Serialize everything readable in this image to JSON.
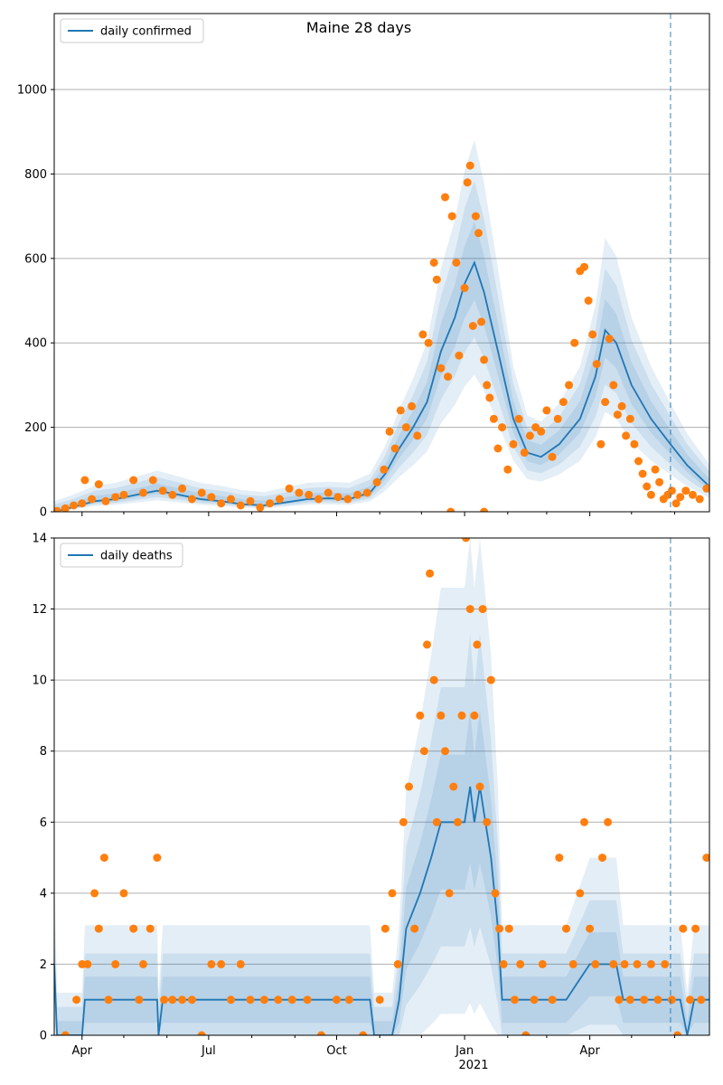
{
  "title": "Maine 28 days",
  "colors": {
    "line": "#1f77b4",
    "band": "#1f77b4",
    "points": "#ff7f0e",
    "grid": "#b0b0b0",
    "vline": "#1f77b4"
  },
  "x_ticks": [
    {
      "label": "Apr",
      "date": "2020-04-01"
    },
    {
      "label": "Jul",
      "date": "2020-07-01"
    },
    {
      "label": "Oct",
      "date": "2020-10-01"
    },
    {
      "label": "Jan",
      "date": "2021-01-01"
    },
    {
      "label": "Apr",
      "date": "2021-04-01"
    }
  ],
  "x_year_label": "2021",
  "x_range": [
    "2020-03-12",
    "2021-06-26"
  ],
  "forecast_date": "2021-05-29",
  "chart_data": [
    {
      "type": "line",
      "legend": "daily confirmed",
      "legend_position": "upper-left",
      "grid": "y",
      "ylim": [
        0,
        1180
      ],
      "yticks": [
        0,
        200,
        400,
        600,
        800,
        1000
      ],
      "median": [
        [
          "2020-03-12",
          0
        ],
        [
          "2020-03-25",
          10
        ],
        [
          "2020-04-10",
          25
        ],
        [
          "2020-04-25",
          30
        ],
        [
          "2020-05-10",
          40
        ],
        [
          "2020-05-25",
          50
        ],
        [
          "2020-06-10",
          40
        ],
        [
          "2020-06-25",
          30
        ],
        [
          "2020-07-10",
          25
        ],
        [
          "2020-07-25",
          18
        ],
        [
          "2020-08-10",
          15
        ],
        [
          "2020-08-25",
          22
        ],
        [
          "2020-09-10",
          30
        ],
        [
          "2020-09-25",
          32
        ],
        [
          "2020-10-10",
          30
        ],
        [
          "2020-10-25",
          45
        ],
        [
          "2020-11-05",
          90
        ],
        [
          "2020-11-15",
          150
        ],
        [
          "2020-11-25",
          200
        ],
        [
          "2020-12-05",
          260
        ],
        [
          "2020-12-15",
          380
        ],
        [
          "2020-12-25",
          460
        ],
        [
          "2021-01-01",
          540
        ],
        [
          "2021-01-08",
          590
        ],
        [
          "2021-01-15",
          520
        ],
        [
          "2021-01-25",
          380
        ],
        [
          "2021-02-05",
          220
        ],
        [
          "2021-02-15",
          140
        ],
        [
          "2021-02-25",
          130
        ],
        [
          "2021-03-10",
          160
        ],
        [
          "2021-03-25",
          220
        ],
        [
          "2021-04-05",
          320
        ],
        [
          "2021-04-12",
          430
        ],
        [
          "2021-04-20",
          400
        ],
        [
          "2021-05-01",
          300
        ],
        [
          "2021-05-15",
          220
        ],
        [
          "2021-05-29",
          160
        ],
        [
          "2021-06-10",
          110
        ],
        [
          "2021-06-26",
          60
        ]
      ],
      "bands": [
        {
          "lo": 0.55,
          "hi": 1.45
        },
        {
          "lo": 0.7,
          "hi": 1.3
        },
        {
          "lo": 0.85,
          "hi": 1.15
        }
      ],
      "points": [
        [
          "2020-03-14",
          2
        ],
        [
          "2020-03-20",
          8
        ],
        [
          "2020-03-26",
          15
        ],
        [
          "2020-04-01",
          20
        ],
        [
          "2020-04-03",
          75
        ],
        [
          "2020-04-08",
          30
        ],
        [
          "2020-04-13",
          65
        ],
        [
          "2020-04-18",
          25
        ],
        [
          "2020-04-25",
          35
        ],
        [
          "2020-05-01",
          40
        ],
        [
          "2020-05-08",
          75
        ],
        [
          "2020-05-15",
          45
        ],
        [
          "2020-05-22",
          75
        ],
        [
          "2020-05-29",
          50
        ],
        [
          "2020-06-05",
          40
        ],
        [
          "2020-06-12",
          55
        ],
        [
          "2020-06-19",
          30
        ],
        [
          "2020-06-26",
          45
        ],
        [
          "2020-07-03",
          35
        ],
        [
          "2020-07-10",
          20
        ],
        [
          "2020-07-17",
          30
        ],
        [
          "2020-07-24",
          15
        ],
        [
          "2020-07-31",
          25
        ],
        [
          "2020-08-07",
          10
        ],
        [
          "2020-08-14",
          20
        ],
        [
          "2020-08-21",
          30
        ],
        [
          "2020-08-28",
          55
        ],
        [
          "2020-09-04",
          45
        ],
        [
          "2020-09-11",
          40
        ],
        [
          "2020-09-18",
          30
        ],
        [
          "2020-09-25",
          45
        ],
        [
          "2020-10-02",
          35
        ],
        [
          "2020-10-09",
          30
        ],
        [
          "2020-10-16",
          40
        ],
        [
          "2020-10-23",
          45
        ],
        [
          "2020-10-30",
          70
        ],
        [
          "2020-11-04",
          100
        ],
        [
          "2020-11-08",
          190
        ],
        [
          "2020-11-12",
          150
        ],
        [
          "2020-11-16",
          240
        ],
        [
          "2020-11-20",
          200
        ],
        [
          "2020-11-24",
          250
        ],
        [
          "2020-11-28",
          180
        ],
        [
          "2020-12-02",
          420
        ],
        [
          "2020-12-06",
          400
        ],
        [
          "2020-12-10",
          590
        ],
        [
          "2020-12-12",
          550
        ],
        [
          "2020-12-15",
          340
        ],
        [
          "2020-12-18",
          745
        ],
        [
          "2020-12-20",
          320
        ],
        [
          "2020-12-23",
          700
        ],
        [
          "2020-12-26",
          590
        ],
        [
          "2020-12-28",
          370
        ],
        [
          "2021-01-01",
          530
        ],
        [
          "2021-01-03",
          780
        ],
        [
          "2021-01-05",
          820
        ],
        [
          "2021-01-07",
          440
        ],
        [
          "2021-01-09",
          700
        ],
        [
          "2021-01-11",
          660
        ],
        [
          "2021-01-13",
          450
        ],
        [
          "2021-01-15",
          360
        ],
        [
          "2021-01-17",
          300
        ],
        [
          "2021-01-19",
          270
        ],
        [
          "2021-01-22",
          220
        ],
        [
          "2021-01-25",
          150
        ],
        [
          "2021-01-28",
          200
        ],
        [
          "2021-02-01",
          100
        ],
        [
          "2021-02-05",
          160
        ],
        [
          "2021-02-09",
          220
        ],
        [
          "2021-02-13",
          140
        ],
        [
          "2021-02-17",
          180
        ],
        [
          "2021-02-21",
          200
        ],
        [
          "2021-02-25",
          190
        ],
        [
          "2021-03-01",
          240
        ],
        [
          "2021-03-05",
          130
        ],
        [
          "2021-03-09",
          220
        ],
        [
          "2021-03-13",
          260
        ],
        [
          "2021-03-17",
          300
        ],
        [
          "2021-03-21",
          400
        ],
        [
          "2021-03-25",
          570
        ],
        [
          "2021-03-28",
          580
        ],
        [
          "2021-03-31",
          500
        ],
        [
          "2021-04-03",
          420
        ],
        [
          "2021-04-06",
          350
        ],
        [
          "2021-04-09",
          160
        ],
        [
          "2021-04-12",
          260
        ],
        [
          "2021-04-15",
          410
        ],
        [
          "2021-04-18",
          300
        ],
        [
          "2021-04-21",
          230
        ],
        [
          "2021-04-24",
          250
        ],
        [
          "2021-04-27",
          180
        ],
        [
          "2021-04-30",
          220
        ],
        [
          "2021-05-03",
          160
        ],
        [
          "2021-05-06",
          120
        ],
        [
          "2021-05-09",
          90
        ],
        [
          "2021-05-12",
          60
        ],
        [
          "2021-05-15",
          40
        ],
        [
          "2021-05-18",
          100
        ],
        [
          "2021-05-21",
          70
        ],
        [
          "2021-05-24",
          30
        ],
        [
          "2021-05-27",
          40
        ],
        [
          "2021-05-30",
          50
        ],
        [
          "2021-06-02",
          20
        ],
        [
          "2021-06-05",
          35
        ],
        [
          "2021-06-09",
          50
        ],
        [
          "2021-06-14",
          40
        ],
        [
          "2021-06-19",
          30
        ],
        [
          "2021-06-24",
          55
        ],
        [
          "2020-12-22",
          0
        ],
        [
          "2021-01-15",
          0
        ]
      ]
    },
    {
      "type": "line",
      "legend": "daily deaths",
      "legend_position": "upper-left",
      "grid": "y",
      "ylim": [
        0,
        14
      ],
      "yticks": [
        0,
        2,
        4,
        6,
        8,
        10,
        12,
        14
      ],
      "median": [
        [
          "2020-03-12",
          2
        ],
        [
          "2020-03-14",
          0
        ],
        [
          "2020-04-01",
          0
        ],
        [
          "2020-04-03",
          1
        ],
        [
          "2020-05-20",
          1
        ],
        [
          "2020-05-25",
          1
        ],
        [
          "2020-05-26",
          0
        ],
        [
          "2020-05-29",
          1
        ],
        [
          "2020-10-25",
          1
        ],
        [
          "2020-10-28",
          0
        ],
        [
          "2020-11-10",
          0
        ],
        [
          "2020-11-15",
          1
        ],
        [
          "2020-11-20",
          3
        ],
        [
          "2020-11-30",
          4
        ],
        [
          "2020-12-08",
          5
        ],
        [
          "2020-12-15",
          6
        ],
        [
          "2021-01-01",
          6
        ],
        [
          "2021-01-05",
          7
        ],
        [
          "2021-01-08",
          6
        ],
        [
          "2021-01-12",
          7
        ],
        [
          "2021-01-20",
          5
        ],
        [
          "2021-01-25",
          3
        ],
        [
          "2021-01-28",
          1
        ],
        [
          "2021-02-05",
          1
        ],
        [
          "2021-02-15",
          1
        ],
        [
          "2021-03-01",
          1
        ],
        [
          "2021-03-15",
          1
        ],
        [
          "2021-04-01",
          2
        ],
        [
          "2021-04-20",
          2
        ],
        [
          "2021-04-25",
          1
        ],
        [
          "2021-05-20",
          1
        ],
        [
          "2021-06-05",
          1
        ],
        [
          "2021-06-10",
          0
        ],
        [
          "2021-06-15",
          1
        ],
        [
          "2021-06-26",
          1
        ]
      ],
      "bands": [
        {
          "lo": 0.3,
          "hi": 1.9
        },
        {
          "lo": 0.55,
          "hi": 1.5
        },
        {
          "lo": 0.75,
          "hi": 1.25
        }
      ],
      "points": [
        [
          "2020-03-20",
          0
        ],
        [
          "2020-03-28",
          1
        ],
        [
          "2020-04-01",
          2
        ],
        [
          "2020-04-05",
          2
        ],
        [
          "2020-04-10",
          4
        ],
        [
          "2020-04-13",
          3
        ],
        [
          "2020-04-17",
          5
        ],
        [
          "2020-04-20",
          1
        ],
        [
          "2020-04-25",
          2
        ],
        [
          "2020-05-01",
          4
        ],
        [
          "2020-05-08",
          3
        ],
        [
          "2020-05-12",
          1
        ],
        [
          "2020-05-15",
          2
        ],
        [
          "2020-05-20",
          3
        ],
        [
          "2020-05-25",
          5
        ],
        [
          "2020-05-30",
          1
        ],
        [
          "2020-06-05",
          1
        ],
        [
          "2020-06-12",
          1
        ],
        [
          "2020-06-19",
          1
        ],
        [
          "2020-06-26",
          0
        ],
        [
          "2020-07-03",
          2
        ],
        [
          "2020-07-10",
          2
        ],
        [
          "2020-07-17",
          1
        ],
        [
          "2020-07-24",
          2
        ],
        [
          "2020-07-31",
          1
        ],
        [
          "2020-08-10",
          1
        ],
        [
          "2020-08-20",
          1
        ],
        [
          "2020-08-30",
          1
        ],
        [
          "2020-09-10",
          1
        ],
        [
          "2020-09-20",
          0
        ],
        [
          "2020-10-01",
          1
        ],
        [
          "2020-10-10",
          1
        ],
        [
          "2020-10-20",
          0
        ],
        [
          "2020-11-01",
          1
        ],
        [
          "2020-11-05",
          3
        ],
        [
          "2020-11-10",
          4
        ],
        [
          "2020-11-14",
          2
        ],
        [
          "2020-11-18",
          6
        ],
        [
          "2020-11-22",
          7
        ],
        [
          "2020-11-26",
          3
        ],
        [
          "2020-11-30",
          9
        ],
        [
          "2020-12-03",
          8
        ],
        [
          "2020-12-05",
          11
        ],
        [
          "2020-12-07",
          13
        ],
        [
          "2020-12-10",
          10
        ],
        [
          "2020-12-12",
          6
        ],
        [
          "2020-12-15",
          9
        ],
        [
          "2020-12-18",
          8
        ],
        [
          "2020-12-21",
          4
        ],
        [
          "2020-12-24",
          7
        ],
        [
          "2020-12-27",
          6
        ],
        [
          "2020-12-30",
          9
        ],
        [
          "2021-01-02",
          14
        ],
        [
          "2021-01-05",
          12
        ],
        [
          "2021-01-08",
          9
        ],
        [
          "2021-01-10",
          11
        ],
        [
          "2021-01-12",
          7
        ],
        [
          "2021-01-14",
          12
        ],
        [
          "2021-01-17",
          6
        ],
        [
          "2021-01-20",
          10
        ],
        [
          "2021-01-23",
          4
        ],
        [
          "2021-01-26",
          3
        ],
        [
          "2021-01-29",
          2
        ],
        [
          "2021-02-02",
          3
        ],
        [
          "2021-02-06",
          1
        ],
        [
          "2021-02-10",
          2
        ],
        [
          "2021-02-14",
          0
        ],
        [
          "2021-02-20",
          1
        ],
        [
          "2021-02-26",
          2
        ],
        [
          "2021-03-05",
          1
        ],
        [
          "2021-03-10",
          5
        ],
        [
          "2021-03-15",
          3
        ],
        [
          "2021-03-20",
          2
        ],
        [
          "2021-03-25",
          4
        ],
        [
          "2021-03-28",
          6
        ],
        [
          "2021-04-01",
          3
        ],
        [
          "2021-04-05",
          2
        ],
        [
          "2021-04-10",
          5
        ],
        [
          "2021-04-14",
          6
        ],
        [
          "2021-04-18",
          2
        ],
        [
          "2021-04-22",
          1
        ],
        [
          "2021-04-26",
          2
        ],
        [
          "2021-04-30",
          1
        ],
        [
          "2021-05-05",
          2
        ],
        [
          "2021-05-10",
          1
        ],
        [
          "2021-05-15",
          2
        ],
        [
          "2021-05-20",
          1
        ],
        [
          "2021-05-25",
          2
        ],
        [
          "2021-05-30",
          1
        ],
        [
          "2021-06-03",
          0
        ],
        [
          "2021-06-07",
          3
        ],
        [
          "2021-06-12",
          1
        ],
        [
          "2021-06-16",
          3
        ],
        [
          "2021-06-20",
          1
        ],
        [
          "2021-06-24",
          5
        ]
      ]
    }
  ]
}
